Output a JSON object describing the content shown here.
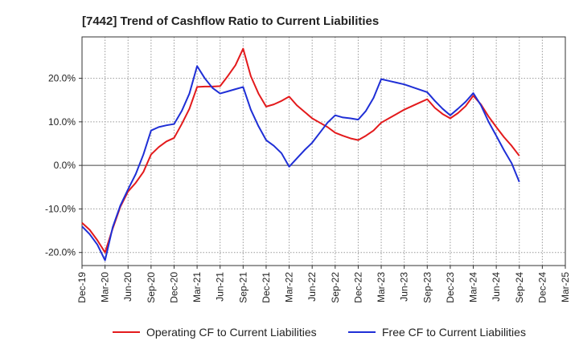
{
  "chart_data": {
    "type": "line",
    "title": "[7442]  Trend of Cashflow Ratio to Current Liabilities",
    "xlabel": "",
    "ylabel": "",
    "x_tick_labels": [
      "Dec-19",
      "Mar-20",
      "Jun-20",
      "Sep-20",
      "Dec-20",
      "Mar-21",
      "Jun-21",
      "Sep-21",
      "Dec-21",
      "Mar-22",
      "Jun-22",
      "Sep-22",
      "Dec-22",
      "Mar-23",
      "Jun-23",
      "Sep-23",
      "Dec-23",
      "Mar-24",
      "Jun-24",
      "Sep-24",
      "Dec-24",
      "Mar-25"
    ],
    "y_tick_labels": [
      "-20.0%",
      "-10.0%",
      "0.0%",
      "10.0%",
      "20.0%"
    ],
    "y_ticks": [
      -20,
      -10,
      0,
      10,
      20
    ],
    "ylim": [
      -23,
      29.5
    ],
    "xlim": [
      "Dec-19",
      "Mar-25"
    ],
    "grid": true,
    "legend_position": "bottom",
    "series": [
      {
        "name": "Operating CF to Current Liabilities",
        "color": "#e31a1c",
        "x": [
          "Dec-19",
          "Jan-20",
          "Feb-20",
          "Mar-20",
          "Apr-20",
          "May-20",
          "Jun-20",
          "Jul-20",
          "Aug-20",
          "Sep-20",
          "Oct-20",
          "Nov-20",
          "Dec-20",
          "Jan-21",
          "Feb-21",
          "Mar-21",
          "Apr-21",
          "May-21",
          "Jun-21",
          "Jul-21",
          "Aug-21",
          "Sep-21",
          "Oct-21",
          "Nov-21",
          "Dec-21",
          "Jan-22",
          "Feb-22",
          "Mar-22",
          "Apr-22",
          "May-22",
          "Jun-22",
          "Jul-22",
          "Aug-22",
          "Sep-22",
          "Oct-22",
          "Nov-22",
          "Dec-22",
          "Jan-23",
          "Feb-23",
          "Mar-23",
          "Apr-23",
          "May-23",
          "Jun-23",
          "Jul-23",
          "Aug-23",
          "Sep-23",
          "Oct-23",
          "Nov-23",
          "Dec-23",
          "Jan-24",
          "Feb-24",
          "Mar-24",
          "Apr-24",
          "May-24",
          "Jun-24",
          "Jul-24",
          "Aug-24",
          "Sep-24"
        ],
        "values": [
          -13.2,
          -14.8,
          -17.2,
          -20.0,
          -14.5,
          -9.5,
          -6.0,
          -4.0,
          -1.5,
          2.5,
          4.2,
          5.5,
          6.3,
          9.5,
          13.0,
          18.0,
          18.1,
          18.1,
          18.2,
          20.5,
          23.0,
          26.8,
          20.5,
          16.5,
          13.5,
          14.0,
          14.8,
          15.8,
          13.8,
          12.3,
          10.8,
          9.8,
          8.8,
          7.5,
          6.8,
          6.2,
          5.8,
          6.8,
          8.0,
          9.8,
          10.8,
          11.8,
          12.8,
          13.6,
          14.4,
          15.2,
          13.2,
          11.8,
          10.8,
          12.0,
          13.6,
          16.0,
          14.0,
          11.2,
          8.8,
          6.5,
          4.5,
          2.2
        ]
      },
      {
        "name": "Free CF to Current Liabilities",
        "color": "#1f2fd6",
        "x": [
          "Dec-19",
          "Jan-20",
          "Feb-20",
          "Mar-20",
          "Apr-20",
          "May-20",
          "Jun-20",
          "Jul-20",
          "Aug-20",
          "Sep-20",
          "Oct-20",
          "Nov-20",
          "Dec-20",
          "Jan-21",
          "Feb-21",
          "Mar-21",
          "Apr-21",
          "May-21",
          "Jun-21",
          "Jul-21",
          "Aug-21",
          "Sep-21",
          "Oct-21",
          "Nov-21",
          "Dec-21",
          "Jan-22",
          "Feb-22",
          "Mar-22",
          "Apr-22",
          "May-22",
          "Jun-22",
          "Jul-22",
          "Aug-22",
          "Sep-22",
          "Oct-22",
          "Nov-22",
          "Dec-22",
          "Jan-23",
          "Feb-23",
          "Mar-23",
          "Apr-23",
          "May-23",
          "Jun-23",
          "Jul-23",
          "Aug-23",
          "Sep-23",
          "Oct-23",
          "Nov-23",
          "Dec-23",
          "Jan-24",
          "Feb-24",
          "Mar-24",
          "Apr-24",
          "May-24",
          "Jun-24",
          "Jul-24",
          "Aug-24",
          "Sep-24"
        ],
        "values": [
          -14.0,
          -15.8,
          -18.2,
          -21.8,
          -14.2,
          -9.2,
          -5.5,
          -2.0,
          2.5,
          8.0,
          8.8,
          9.2,
          9.5,
          12.5,
          16.5,
          22.8,
          20.0,
          17.8,
          16.5,
          17.0,
          17.5,
          18.0,
          12.8,
          9.0,
          5.8,
          4.5,
          2.8,
          -0.3,
          1.6,
          3.5,
          5.2,
          7.5,
          9.8,
          11.5,
          11.0,
          10.8,
          10.5,
          12.5,
          15.5,
          19.8,
          19.4,
          19.0,
          18.6,
          18.0,
          17.4,
          16.8,
          14.8,
          13.0,
          11.5,
          13.0,
          14.6,
          16.6,
          13.8,
          10.0,
          6.8,
          3.5,
          0.5,
          -3.8
        ]
      }
    ]
  }
}
